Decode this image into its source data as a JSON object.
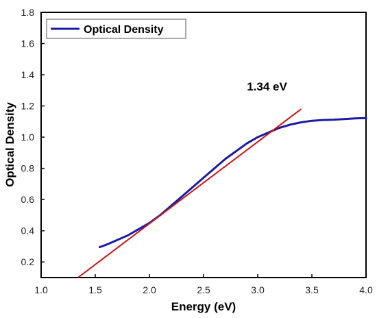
{
  "chart_data": {
    "type": "line",
    "title": "",
    "xlabel": "Energy (eV)",
    "ylabel": "Optical Density",
    "xlim": [
      1.0,
      4.0
    ],
    "ylim": [
      0.1,
      1.8
    ],
    "x_ticks": [
      "1.0",
      "1.5",
      "2.0",
      "2.5",
      "3.0",
      "3.5",
      "4.0"
    ],
    "y_ticks": [
      "0.2",
      "0.4",
      "0.6",
      "0.8",
      "1.0",
      "1.2",
      "1.4",
      "1.6",
      "1.8"
    ],
    "grid": false,
    "legend": {
      "position": "top-left",
      "entries": [
        "Optical Density"
      ]
    },
    "series": [
      {
        "name": "Optical Density",
        "color": "#1a1aa8",
        "x": [
          1.54,
          1.6,
          1.7,
          1.8,
          1.9,
          2.0,
          2.1,
          2.2,
          2.3,
          2.4,
          2.5,
          2.6,
          2.7,
          2.8,
          2.9,
          3.0,
          3.1,
          3.2,
          3.3,
          3.4,
          3.5,
          3.6,
          3.7,
          3.8,
          3.9,
          4.0
        ],
        "y": [
          0.295,
          0.31,
          0.34,
          0.37,
          0.41,
          0.45,
          0.5,
          0.56,
          0.62,
          0.68,
          0.74,
          0.8,
          0.86,
          0.91,
          0.96,
          1.0,
          1.03,
          1.06,
          1.08,
          1.095,
          1.105,
          1.11,
          1.112,
          1.116,
          1.12,
          1.122
        ]
      }
    ],
    "fit_line": {
      "color": "#cc1111",
      "x": [
        1.34,
        3.4
      ],
      "y": [
        0.1,
        1.18
      ]
    },
    "annotations": [
      {
        "text": "1.34 eV",
        "x": 2.9,
        "y": 1.3
      }
    ]
  }
}
